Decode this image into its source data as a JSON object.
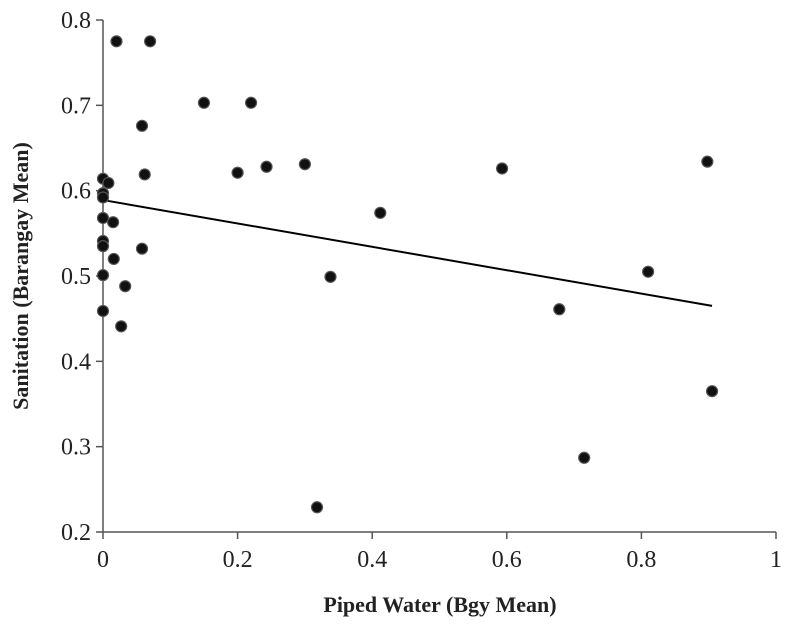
{
  "chart_data": {
    "type": "scatter",
    "title": "",
    "xlabel": "Piped Water (Bgy Mean)",
    "ylabel": "Sanitation (Barangay Mean)",
    "xlim": [
      0,
      1
    ],
    "ylim": [
      0.2,
      0.8
    ],
    "x_ticks": [
      "0",
      "0.2",
      "0.4",
      "0.6",
      "0.8",
      "1"
    ],
    "y_ticks": [
      "0.2",
      "0.3",
      "0.4",
      "0.5",
      "0.6",
      "0.7",
      "0.8"
    ],
    "grid": false,
    "legend": "none",
    "marker_color": "#111111",
    "trendline_color": "#000000",
    "points": [
      {
        "x": 0.02,
        "y": 0.775
      },
      {
        "x": 0.07,
        "y": 0.775
      },
      {
        "x": 0.15,
        "y": 0.703
      },
      {
        "x": 0.22,
        "y": 0.703
      },
      {
        "x": 0.058,
        "y": 0.676
      },
      {
        "x": 0.3,
        "y": 0.631
      },
      {
        "x": 0.243,
        "y": 0.628
      },
      {
        "x": 0.593,
        "y": 0.626
      },
      {
        "x": 0.898,
        "y": 0.634
      },
      {
        "x": 0.2,
        "y": 0.621
      },
      {
        "x": 0.062,
        "y": 0.619
      },
      {
        "x": 0.0,
        "y": 0.614
      },
      {
        "x": 0.008,
        "y": 0.609
      },
      {
        "x": 0.0,
        "y": 0.597
      },
      {
        "x": 0.0,
        "y": 0.592
      },
      {
        "x": 0.412,
        "y": 0.574
      },
      {
        "x": 0.0,
        "y": 0.568
      },
      {
        "x": 0.015,
        "y": 0.563
      },
      {
        "x": 0.0,
        "y": 0.541
      },
      {
        "x": 0.0,
        "y": 0.535
      },
      {
        "x": 0.058,
        "y": 0.532
      },
      {
        "x": 0.016,
        "y": 0.52
      },
      {
        "x": 0.81,
        "y": 0.505
      },
      {
        "x": 0.0,
        "y": 0.501
      },
      {
        "x": 0.338,
        "y": 0.499
      },
      {
        "x": 0.033,
        "y": 0.488
      },
      {
        "x": 0.678,
        "y": 0.461
      },
      {
        "x": 0.0,
        "y": 0.459
      },
      {
        "x": 0.027,
        "y": 0.441
      },
      {
        "x": 0.905,
        "y": 0.365
      },
      {
        "x": 0.715,
        "y": 0.287
      },
      {
        "x": 0.318,
        "y": 0.229
      }
    ],
    "trendline": {
      "x": [
        0,
        0.905
      ],
      "y": [
        0.589,
        0.465
      ]
    }
  }
}
